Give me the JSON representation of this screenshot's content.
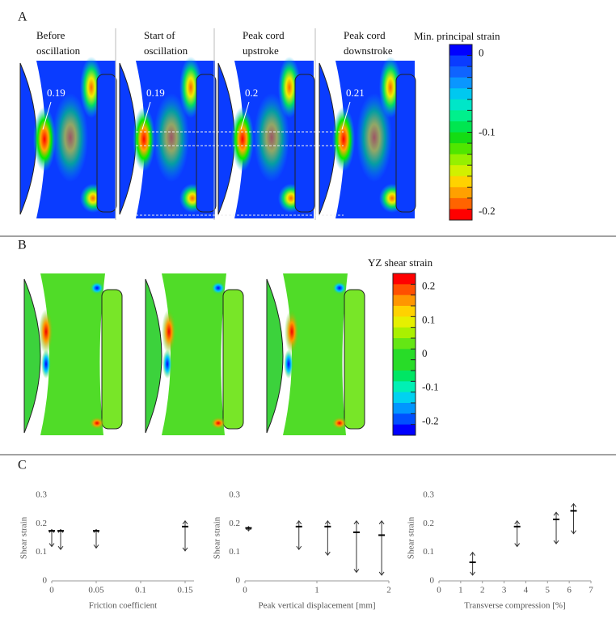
{
  "panels": [
    {
      "label": "A",
      "columns": [
        [
          "Before",
          "oscillation"
        ],
        [
          "Start of",
          "oscillation"
        ],
        [
          "Peak cord",
          "upstroke"
        ],
        [
          "Peak cord",
          "downstroke"
        ]
      ],
      "annotations": [
        "0.19",
        "0.19",
        "0.2",
        "0.21"
      ],
      "colorbar": {
        "title": "Min. principal strain",
        "lim": [
          0.012,
          -0.21
        ],
        "ticks": [
          0,
          -0.1,
          -0.2
        ],
        "colors": [
          "#0000ff",
          "#0a3cff",
          "#0f64ff",
          "#0a96ff",
          "#00c8f0",
          "#00e6c8",
          "#00f08c",
          "#00e650",
          "#14dc14",
          "#50e600",
          "#96f000",
          "#d2f000",
          "#ffd200",
          "#ffa000",
          "#ff6400",
          "#ff0000"
        ]
      }
    },
    {
      "label": "B",
      "colorbar": {
        "title": "YZ shear strain",
        "lim": [
          0.24,
          -0.24
        ],
        "ticks": [
          0.2,
          0.1,
          0,
          -0.1,
          -0.2
        ],
        "colors": [
          "#ff0000",
          "#ff5000",
          "#ff9600",
          "#ffd200",
          "#e6f000",
          "#aaf000",
          "#64e614",
          "#28dc28",
          "#28dc28",
          "#00e664",
          "#00f0b4",
          "#00d2f0",
          "#0096ff",
          "#0050ff",
          "#0000ff"
        ]
      }
    },
    {
      "label": "C"
    }
  ],
  "chart_data": [
    {
      "type": "errorbar",
      "xlabel": "Friction coefficient",
      "ylabel": "Shear strain",
      "xlim": [
        0,
        0.16
      ],
      "xticks": [
        0,
        0.05,
        0.1,
        0.15
      ],
      "ylim": [
        0,
        0.3
      ],
      "yticks": [
        0,
        0.1,
        0.2,
        0.3
      ],
      "x": [
        0,
        0.01,
        0.05,
        0.15
      ],
      "values": [
        0.175,
        0.175,
        0.175,
        0.19
      ],
      "lows": [
        0.12,
        0.11,
        0.115,
        0.105
      ],
      "highs": [
        0.18,
        0.18,
        0.18,
        0.21
      ]
    },
    {
      "type": "errorbar",
      "xlabel": "Peak vertical displacement [mm]",
      "ylabel": "Shear strain",
      "xlim": [
        0,
        2
      ],
      "xticks": [
        0,
        1,
        2
      ],
      "ylim": [
        0,
        0.3
      ],
      "yticks": [
        0,
        0.1,
        0.2,
        0.3
      ],
      "x": [
        0.05,
        0.75,
        1.15,
        1.55,
        1.9
      ],
      "values": [
        0.185,
        0.19,
        0.19,
        0.17,
        0.16
      ],
      "lows": [
        0.175,
        0.11,
        0.09,
        0.03,
        0.02
      ],
      "highs": [
        0.19,
        0.21,
        0.21,
        0.21,
        0.21
      ]
    },
    {
      "type": "errorbar",
      "xlabel": "Transverse compression [%]",
      "ylabel": "Shear strain",
      "xlim": [
        0,
        7
      ],
      "xticks": [
        0,
        1,
        2,
        3,
        4,
        5,
        6,
        7
      ],
      "ylim": [
        0,
        0.3
      ],
      "yticks": [
        0,
        0.1,
        0.2,
        0.3
      ],
      "x": [
        1.55,
        3.6,
        5.4,
        6.2
      ],
      "values": [
        0.065,
        0.19,
        0.215,
        0.245
      ],
      "lows": [
        0.02,
        0.12,
        0.13,
        0.165
      ],
      "highs": [
        0.1,
        0.21,
        0.24,
        0.27
      ]
    }
  ]
}
